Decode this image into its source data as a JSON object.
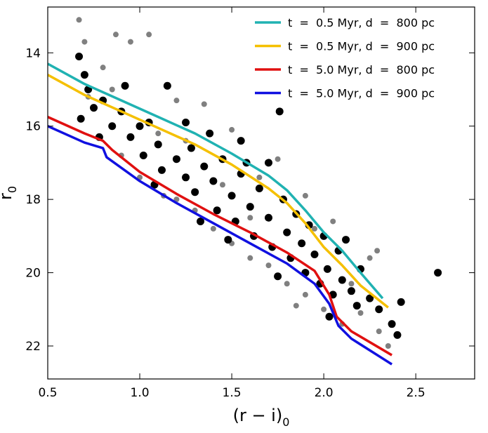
{
  "chart_data": {
    "type": "scatter",
    "xlabel": {
      "text": "(r − i)",
      "sub": "0"
    },
    "ylabel": {
      "text": "r",
      "sub": "0"
    },
    "xlim": [
      0.5,
      2.82
    ],
    "ylim": [
      12.75,
      22.9
    ],
    "y_inverted": true,
    "xticks": [
      0.5,
      {
        "value": 1,
        "label": "1.0"
      },
      1.5,
      {
        "value": 2,
        "label": "2.0"
      },
      2.5
    ],
    "yticks": [
      14,
      16,
      18,
      20,
      22
    ],
    "legend": "upper right",
    "points": [
      {
        "color": "#808080",
        "x": [
          0.67,
          0.7,
          0.72,
          0.87,
          0.95,
          1.05,
          1.0,
          0.9,
          1.13,
          1.2,
          1.3,
          1.4,
          1.5,
          1.6,
          1.7,
          1.8,
          1.9,
          1.85,
          2.0,
          2.1,
          2.2,
          2.3,
          2.35,
          2.29,
          1.2,
          1.5,
          1.65,
          1.9,
          2.05,
          2.25,
          0.85,
          1.35,
          1.6,
          1.75,
          1.45,
          1.1,
          0.8,
          1.25,
          1.95,
          2.15
        ],
        "y": [
          13.1,
          13.7,
          15.2,
          13.5,
          13.7,
          13.5,
          17.4,
          16.8,
          17.9,
          18.0,
          18.3,
          18.8,
          19.2,
          19.6,
          19.8,
          20.3,
          20.6,
          20.9,
          21.0,
          21.4,
          21.1,
          21.6,
          22.0,
          19.4,
          15.3,
          16.1,
          17.4,
          17.9,
          18.6,
          19.6,
          15.0,
          15.4,
          18.5,
          16.9,
          17.6,
          16.2,
          14.4,
          16.4,
          18.8,
          20.3
        ]
      },
      {
        "color": "#000000",
        "x": [
          0.67,
          0.7,
          0.72,
          0.75,
          0.68,
          0.8,
          0.85,
          0.9,
          0.95,
          1.0,
          1.02,
          1.05,
          1.1,
          1.12,
          1.15,
          1.2,
          1.25,
          1.28,
          1.3,
          1.35,
          1.4,
          1.42,
          1.45,
          1.5,
          1.52,
          1.55,
          1.6,
          1.62,
          1.65,
          1.7,
          1.72,
          1.76,
          1.78,
          1.8,
          1.82,
          1.85,
          1.88,
          1.9,
          1.92,
          1.95,
          1.98,
          2.0,
          2.02,
          2.05,
          2.08,
          2.1,
          2.12,
          2.15,
          2.18,
          2.2,
          2.25,
          2.3,
          2.37,
          2.4,
          2.42,
          2.62,
          2.03,
          1.7,
          1.55,
          1.38,
          0.92,
          1.08,
          1.33,
          1.48,
          1.75,
          1.58,
          1.25,
          0.78
        ],
        "y": [
          14.1,
          14.6,
          15.0,
          15.5,
          15.8,
          15.3,
          16.0,
          15.6,
          16.3,
          16.0,
          16.8,
          15.9,
          16.5,
          17.2,
          14.9,
          16.9,
          17.4,
          16.6,
          17.8,
          17.1,
          17.5,
          18.3,
          16.9,
          17.9,
          18.6,
          17.3,
          18.2,
          19.0,
          17.7,
          18.5,
          19.3,
          15.6,
          18.0,
          18.9,
          19.6,
          18.4,
          19.2,
          20.0,
          18.7,
          19.5,
          20.3,
          19.0,
          19.9,
          20.6,
          19.4,
          20.2,
          19.1,
          20.5,
          20.9,
          19.9,
          20.7,
          21.0,
          21.4,
          21.7,
          20.8,
          20.0,
          21.2,
          17.0,
          16.4,
          16.2,
          14.9,
          17.6,
          18.6,
          19.1,
          20.1,
          17.0,
          15.9,
          16.3
        ]
      }
    ],
    "series": [
      {
        "name": "t  =  0.5 Myr, d  =  800 pc",
        "color": "#20b2b2",
        "x": [
          0.5,
          0.7,
          0.9,
          1.1,
          1.3,
          1.5,
          1.7,
          1.8,
          1.9,
          2.0,
          2.1,
          2.2,
          2.32
        ],
        "values": [
          14.3,
          14.85,
          15.3,
          15.75,
          16.2,
          16.75,
          17.35,
          17.75,
          18.3,
          18.9,
          19.4,
          20.0,
          20.7
        ]
      },
      {
        "name": "t  =  0.5 Myr, d  =  900 pc",
        "color": "#f5c000",
        "x": [
          0.5,
          0.7,
          0.9,
          1.1,
          1.3,
          1.5,
          1.7,
          1.8,
          1.9,
          2.0,
          2.1,
          2.2,
          2.35
        ],
        "values": [
          14.6,
          15.15,
          15.6,
          16.05,
          16.5,
          17.05,
          17.7,
          18.1,
          18.65,
          19.3,
          19.8,
          20.35,
          20.95
        ]
      },
      {
        "name": "t  =  5.0 Myr, d  =  800 pc",
        "color": "#e01010",
        "x": [
          0.5,
          0.7,
          0.8,
          0.85,
          1.0,
          1.2,
          1.4,
          1.6,
          1.8,
          1.95,
          2.03,
          2.07,
          2.15,
          2.37
        ],
        "values": [
          15.75,
          16.2,
          16.4,
          16.65,
          17.25,
          17.85,
          18.4,
          18.9,
          19.45,
          19.95,
          20.6,
          21.2,
          21.6,
          22.25
        ]
      },
      {
        "name": "t  =  5.0 Myr, d  =  900 pc",
        "color": "#1010e0",
        "x": [
          0.5,
          0.7,
          0.8,
          0.82,
          1.0,
          1.2,
          1.4,
          1.6,
          1.8,
          1.95,
          2.03,
          2.08,
          2.15,
          2.37
        ],
        "values": [
          16.0,
          16.45,
          16.6,
          16.85,
          17.5,
          18.1,
          18.65,
          19.2,
          19.75,
          20.3,
          20.85,
          21.45,
          21.8,
          22.5
        ]
      }
    ]
  }
}
